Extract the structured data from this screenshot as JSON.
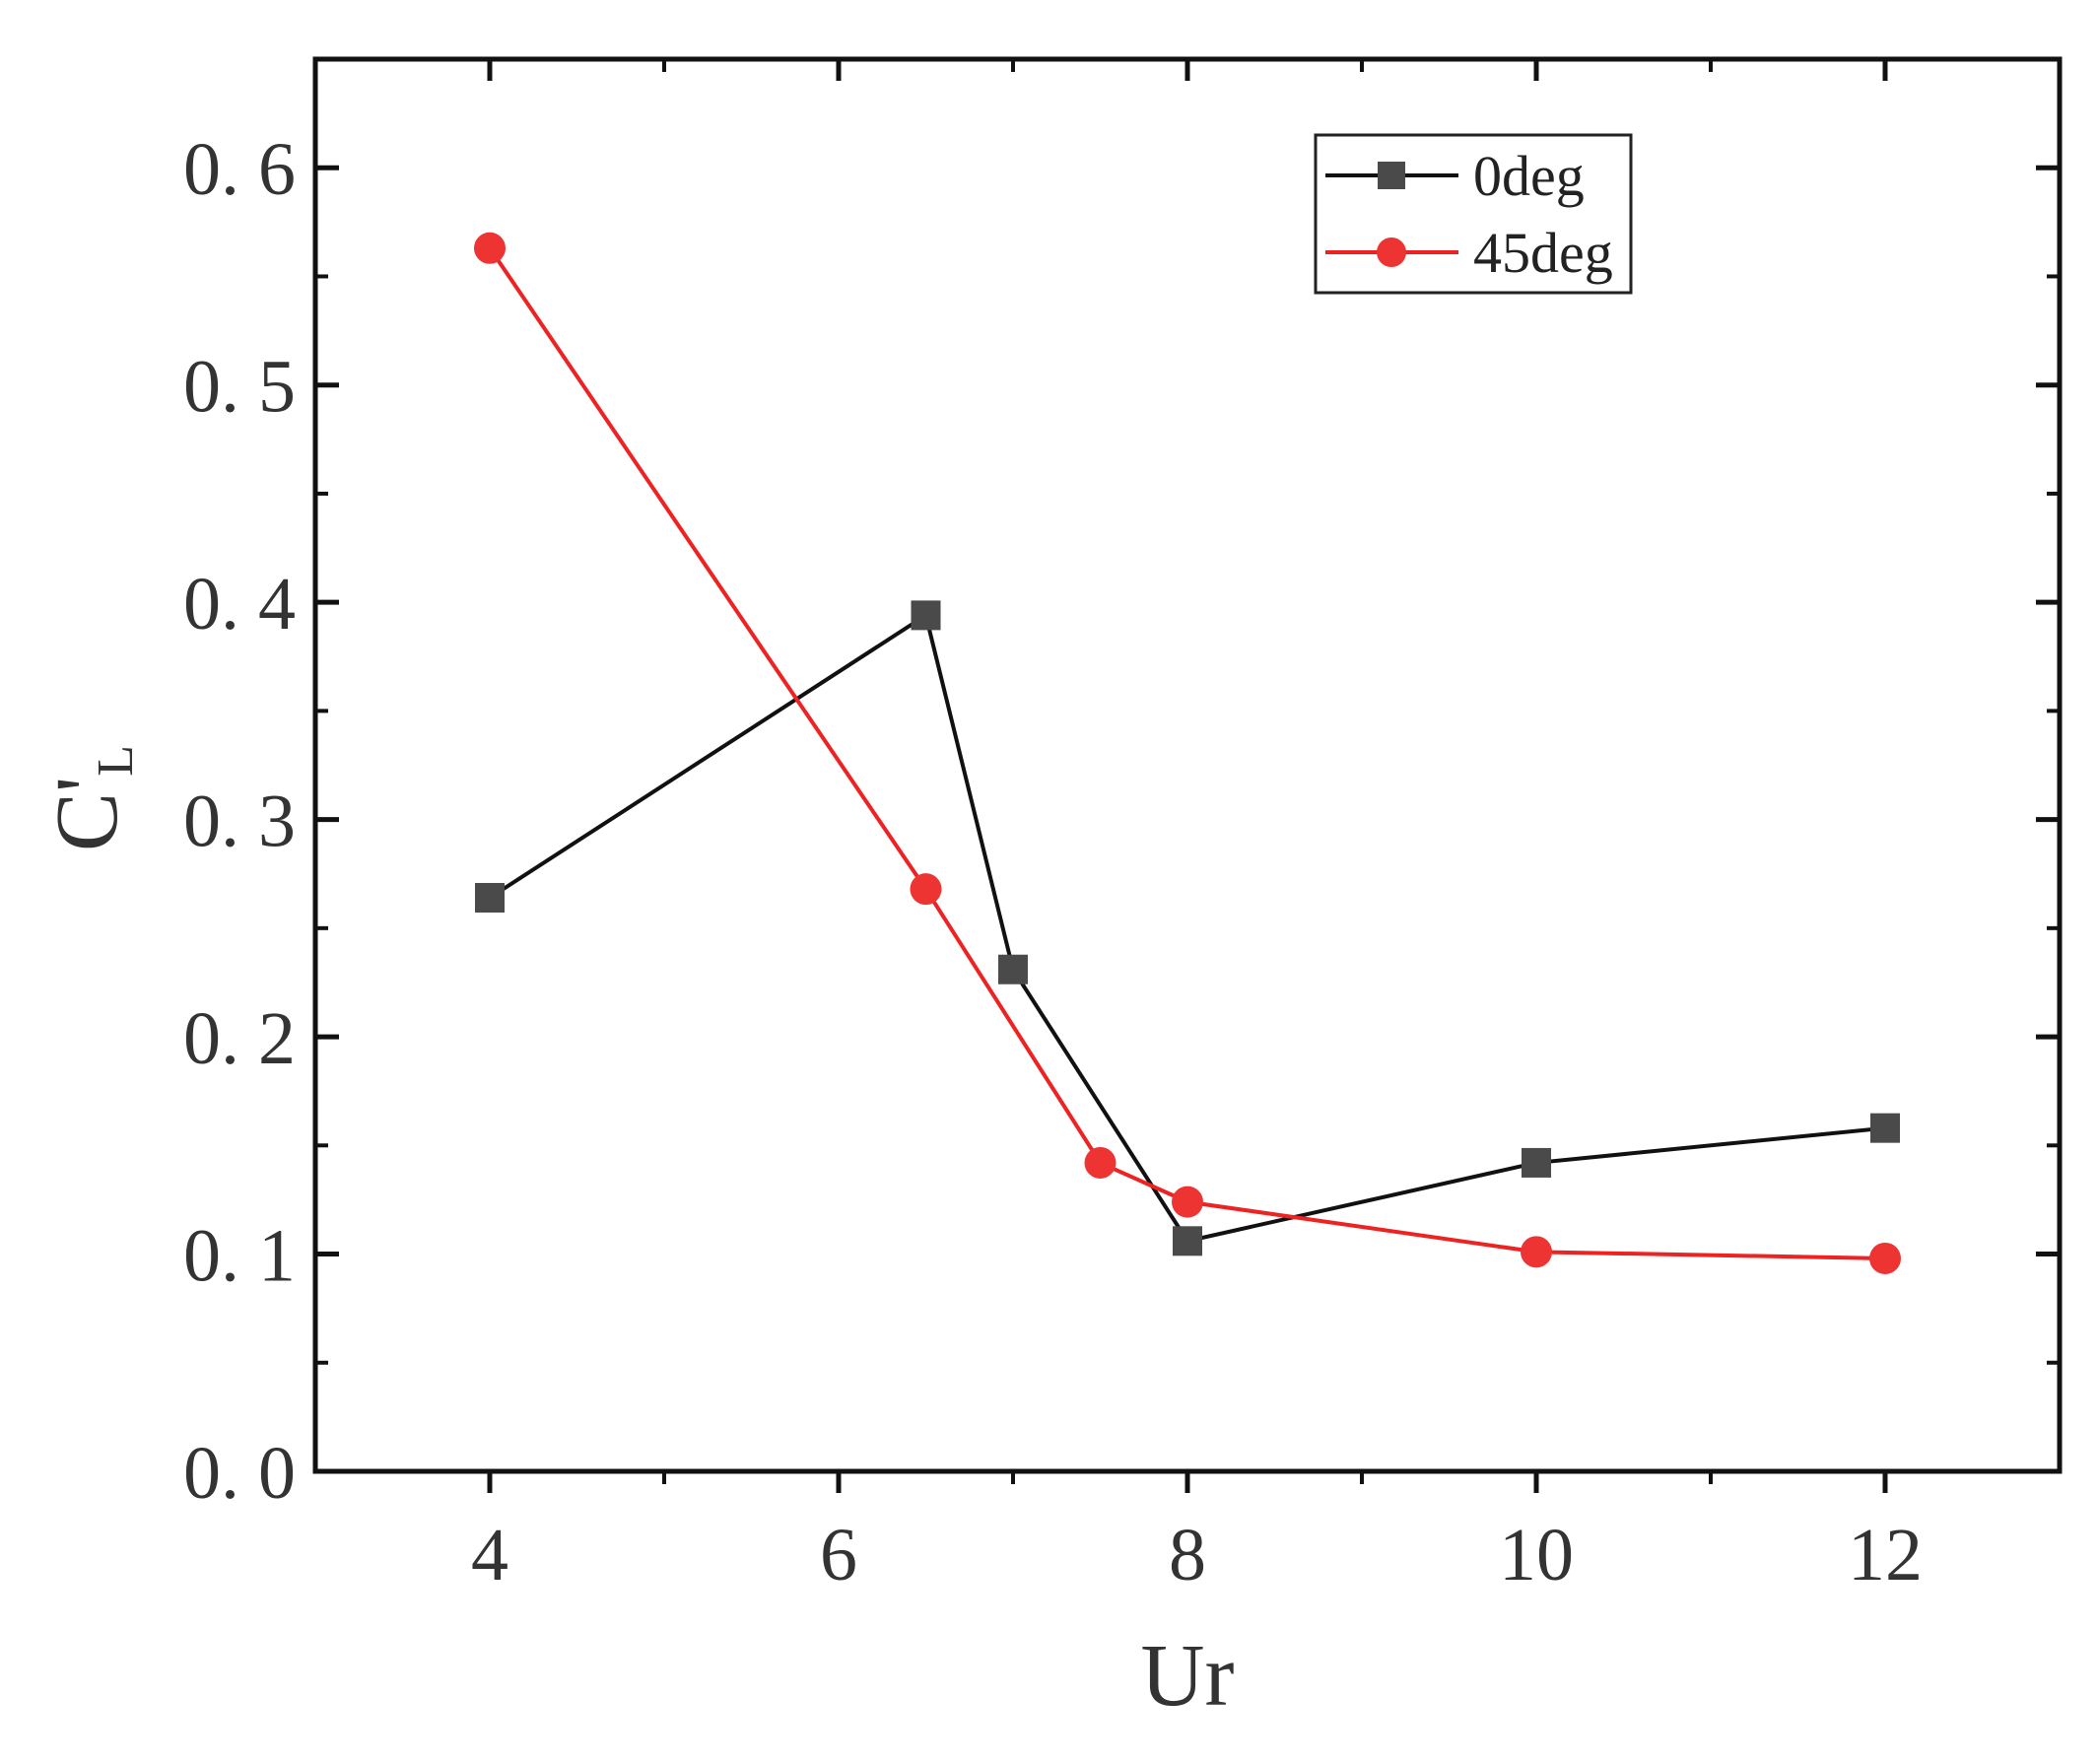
{
  "chart_data": {
    "type": "line",
    "title": "",
    "xlabel": "Ur",
    "ylabel": "C'",
    "ylabel_subscript": "L",
    "xlim": [
      3,
      13
    ],
    "ylim": [
      0,
      0.65
    ],
    "x_ticks": [
      4,
      6,
      8,
      10,
      12
    ],
    "x_tick_labels": [
      "4",
      "6",
      "8",
      "10",
      "12"
    ],
    "y_ticks": [
      0,
      0.1,
      0.2,
      0.3,
      0.4,
      0.5,
      0.6
    ],
    "y_tick_labels": [
      "0. 0",
      "0. 1",
      "0. 2",
      "0. 3",
      "0. 4",
      "0. 5",
      "0. 6"
    ],
    "grid": false,
    "legend_position": "top-right",
    "series": [
      {
        "name": "0deg",
        "marker": "square",
        "color": "#4a4a4a",
        "line_color": "#111111",
        "x": [
          4,
          6.5,
          7,
          8,
          10,
          12
        ],
        "y": [
          0.264,
          0.394,
          0.231,
          0.106,
          0.142,
          0.158
        ]
      },
      {
        "name": "45deg",
        "marker": "circle",
        "color": "#ee3333",
        "line_color": "#ee2222",
        "x": [
          4,
          6.5,
          7.5,
          8,
          10,
          12
        ],
        "y": [
          0.563,
          0.268,
          0.142,
          0.124,
          0.101,
          0.098
        ]
      }
    ]
  }
}
